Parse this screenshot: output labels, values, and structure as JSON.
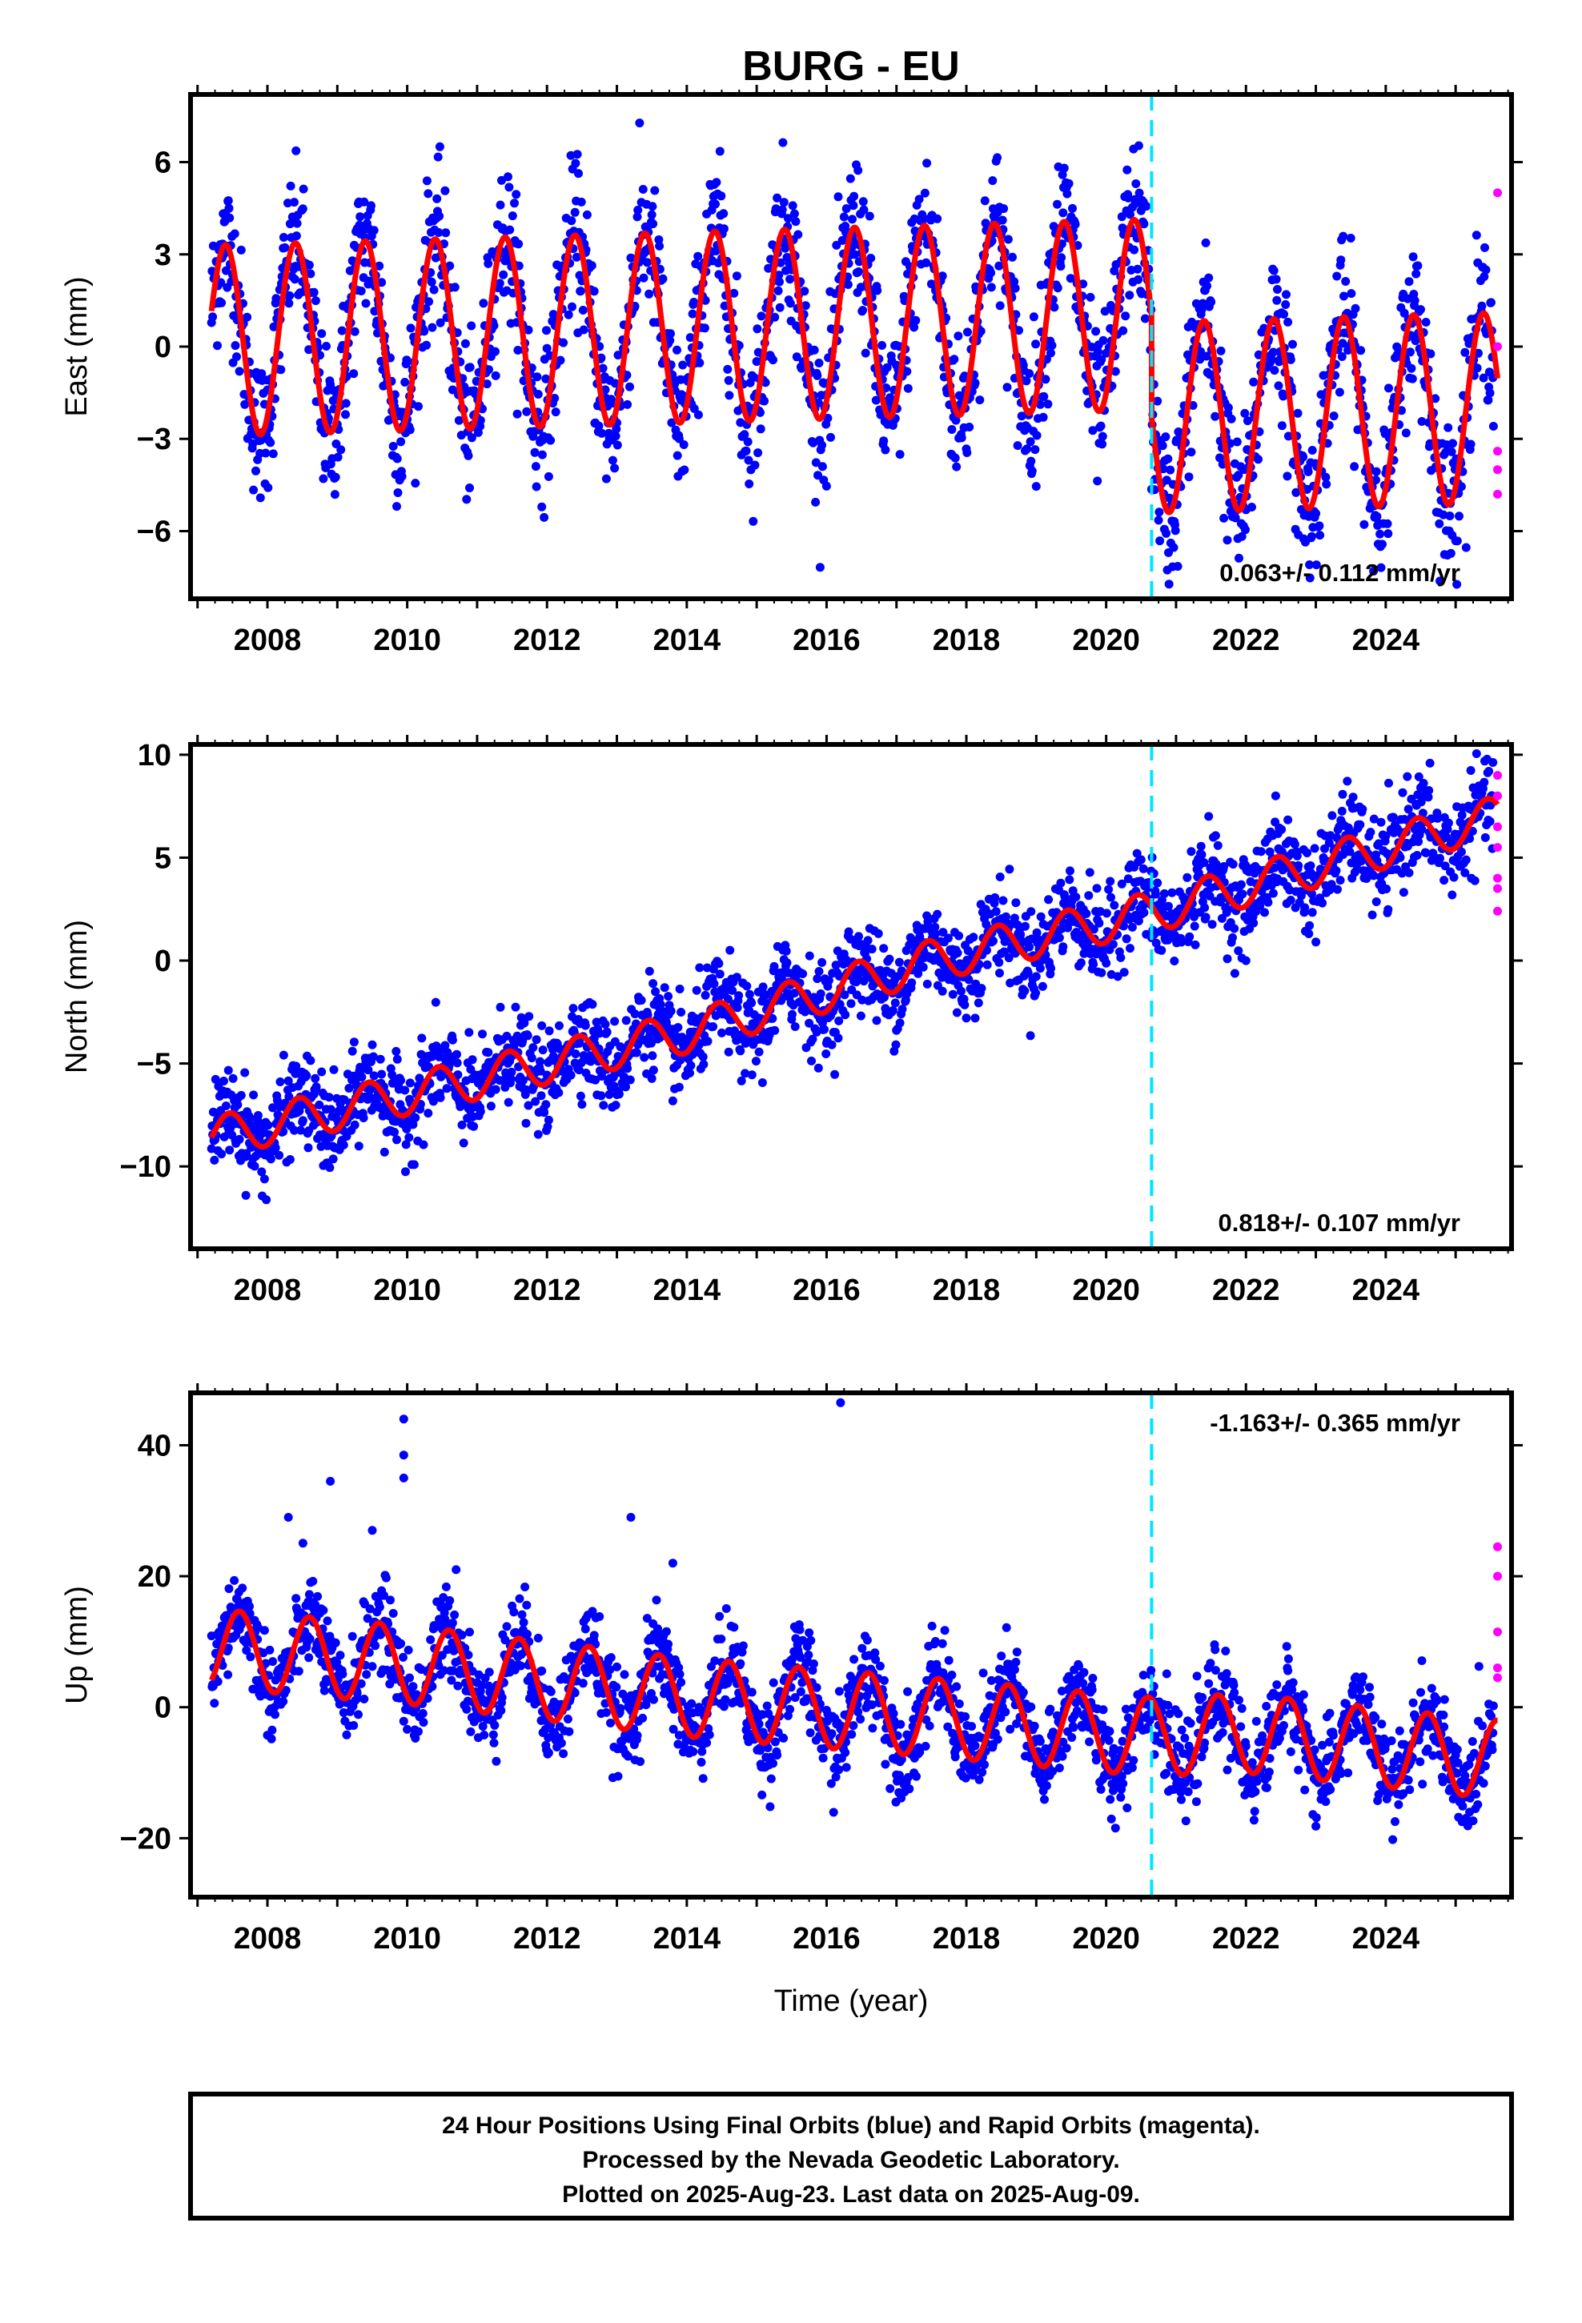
{
  "title": "BURG - EU",
  "xlabel": "Time (year)",
  "footer": {
    "line1": "24 Hour Positions Using Final Orbits (blue) and Rapid Orbits (magenta).",
    "line2": "Processed by the Nevada Geodetic Laboratory.",
    "line3": "Plotted on 2025-Aug-23. Last data on 2025-Aug-09."
  },
  "colors": {
    "final_orbits": "#0000ff",
    "rapid_orbits": "#ff00ff",
    "model_fit": "#ff0000",
    "equipment_change": "#00e5ff"
  },
  "chart_data": [
    {
      "type": "scatter",
      "component": "East",
      "ylabel": "East (mm)",
      "xlim": [
        2006.9,
        2025.8
      ],
      "ylim": [
        -8.2,
        8.2
      ],
      "yticks": [
        -6,
        -3,
        0,
        3,
        6
      ],
      "yticklabels": [
        "−6",
        "−3",
        "0",
        "3",
        "6"
      ],
      "xticks": [
        2008,
        2010,
        2012,
        2014,
        2016,
        2018,
        2020,
        2022,
        2024
      ],
      "rate_text": "0.063+/- 0.112 mm/yr",
      "rate_position": "bottom-right",
      "equipment_change_year": 2020.65,
      "grid": false,
      "series": [
        {
          "kind": "final",
          "start": 2007.2,
          "end": 2025.55,
          "scatter_sd": 1.2,
          "offset_before": 0.75,
          "offset_after": -2.6,
          "rate": 0.063,
          "amplitude": 3.1,
          "phase_peak": 0.4
        },
        {
          "kind": "rapid",
          "x": [
            2025.6,
            2025.6,
            2025.6,
            2025.6,
            2025.6
          ],
          "y": [
            5.0,
            -3.4,
            -4.0,
            -4.8,
            0.0
          ]
        }
      ],
      "model_fit": {
        "start": 2007.2,
        "end": 2025.6
      }
    },
    {
      "type": "scatter",
      "component": "North",
      "ylabel": "North (mm)",
      "xlim": [
        2006.9,
        2025.8
      ],
      "ylim": [
        -14,
        10.5
      ],
      "yticks": [
        -10,
        -5,
        0,
        5,
        10
      ],
      "yticklabels": [
        "−10",
        "−5",
        "0",
        "5",
        "10"
      ],
      "xticks": [
        2008,
        2010,
        2012,
        2014,
        2016,
        2018,
        2020,
        2022,
        2024
      ],
      "rate_text": "0.818+/- 0.107 mm/yr",
      "rate_position": "bottom-right",
      "equipment_change_year": 2020.65,
      "grid": false,
      "series": [
        {
          "kind": "final",
          "start": 2007.2,
          "end": 2025.55,
          "scatter_sd": 1.1,
          "anchor_points": [
            [
              2007.2,
              -8.6
            ],
            [
              2010,
              -6.5
            ],
            [
              2014,
              -3.5
            ],
            [
              2017.5,
              0.0
            ],
            [
              2020.6,
              2.3
            ],
            [
              2025.6,
              7.0
            ]
          ],
          "amplitude": 1.0,
          "phase_peak": 0.45
        },
        {
          "kind": "rapid",
          "x": [
            2025.6,
            2025.6,
            2025.6,
            2025.6,
            2025.6,
            2025.6,
            2025.6
          ],
          "y": [
            9.0,
            8.0,
            6.5,
            5.5,
            4.0,
            3.5,
            2.4
          ]
        }
      ],
      "model_fit": {
        "start": 2007.2,
        "end": 2025.6
      }
    },
    {
      "type": "scatter",
      "component": "Up",
      "ylabel": "Up (mm)",
      "xlim": [
        2006.9,
        2025.8
      ],
      "ylim": [
        -29,
        48
      ],
      "yticks": [
        -20,
        0,
        20,
        40
      ],
      "yticklabels": [
        "−20",
        "0",
        "20",
        "40"
      ],
      "xticks": [
        2008,
        2010,
        2012,
        2014,
        2016,
        2018,
        2020,
        2022,
        2024
      ],
      "rate_text": "-1.163+/- 0.365 mm/yr",
      "rate_position": "top-right",
      "equipment_change_year": 2020.65,
      "grid": false,
      "series": [
        {
          "kind": "final",
          "start": 2007.2,
          "end": 2025.55,
          "scatter_sd": 3.4,
          "anchor_points": [
            [
              2007.2,
              9.0
            ],
            [
              2010,
              6.5
            ],
            [
              2014,
              1.5
            ],
            [
              2018,
              -2.0
            ],
            [
              2020.6,
              -4.5
            ],
            [
              2022,
              -4.0
            ],
            [
              2025.6,
              -8.0
            ]
          ],
          "amplitude": 6.0,
          "phase_peak": 0.6,
          "outliers": [
            [
              2008.3,
              29
            ],
            [
              2008.9,
              34.5
            ],
            [
              2009.5,
              27
            ],
            [
              2009.95,
              44
            ],
            [
              2009.95,
              38.5
            ],
            [
              2009.95,
              35
            ],
            [
              2013.2,
              29
            ],
            [
              2016.2,
              46.5
            ],
            [
              2013.8,
              22
            ],
            [
              2010.7,
              21
            ]
          ]
        },
        {
          "kind": "rapid",
          "x": [
            2025.6,
            2025.6,
            2025.6,
            2025.6,
            2025.6
          ],
          "y": [
            24.5,
            20.0,
            11.5,
            6.0,
            4.5
          ]
        }
      ],
      "model_fit": {
        "start": 2007.2,
        "end": 2025.6
      }
    }
  ]
}
